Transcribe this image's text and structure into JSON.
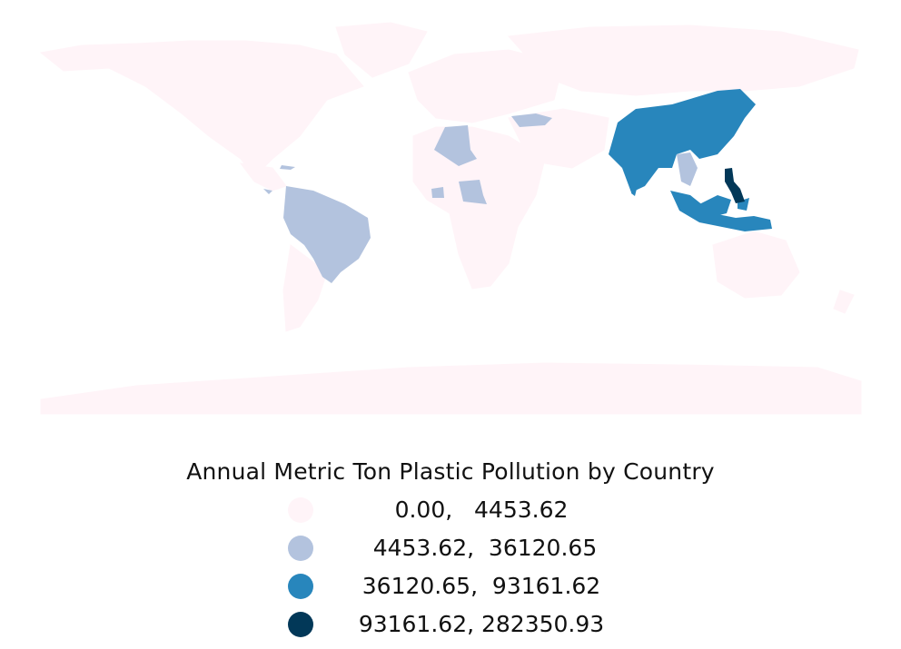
{
  "legend": {
    "title": "Annual Metric Ton Plastic Pollution by Country",
    "entries": [
      {
        "label": "0.00,   4453.62",
        "color": "#fff4f8"
      },
      {
        "label": " 4453.62,  36120.65",
        "color": "#b3c3de"
      },
      {
        "label": "36120.65,  93161.62",
        "color": "#2886bc"
      },
      {
        "label": "93161.62, 282350.93",
        "color": "#023858"
      }
    ]
  },
  "colors": {
    "land_default": "#fff4f8",
    "class_2": "#b3c3de",
    "class_3": "#2886bc",
    "class_4": "#023858"
  }
}
